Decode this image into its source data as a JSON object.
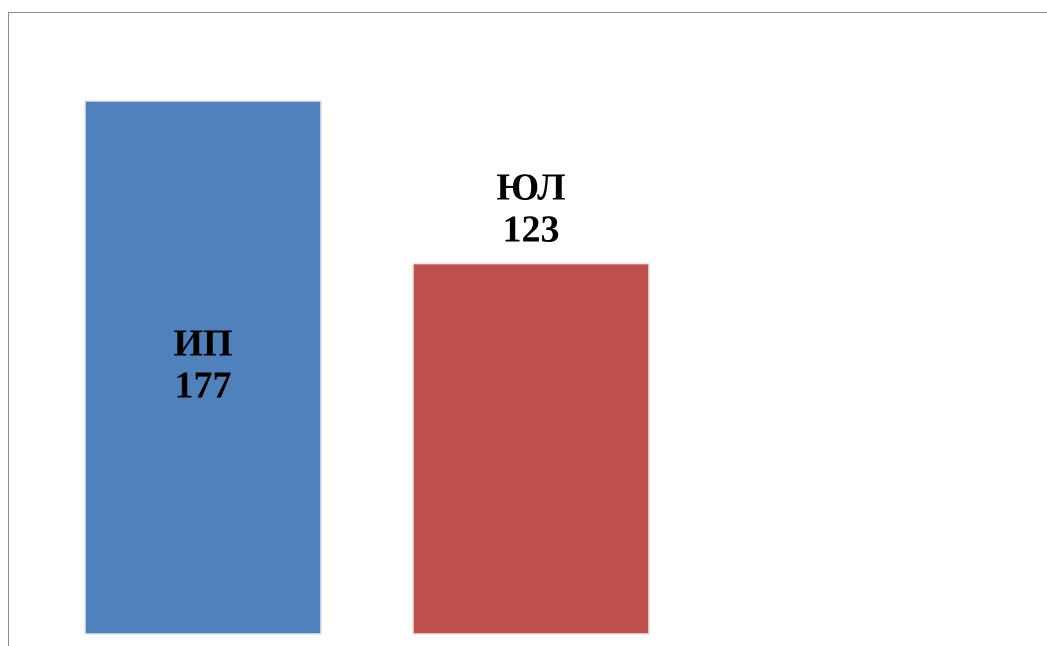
{
  "chart_data": {
    "type": "bar",
    "categories": [
      "ИП",
      "ЮЛ"
    ],
    "values": [
      177,
      123
    ],
    "colors": [
      "#4f81bd",
      "#c0504d"
    ],
    "data_labels": [
      {
        "category": "ИП",
        "value": "177"
      },
      {
        "category": "ЮЛ",
        "value": "123"
      }
    ],
    "title": "",
    "xlabel": "",
    "ylabel": "",
    "ylim": [
      0,
      177
    ],
    "grid": false,
    "legend": "none"
  }
}
